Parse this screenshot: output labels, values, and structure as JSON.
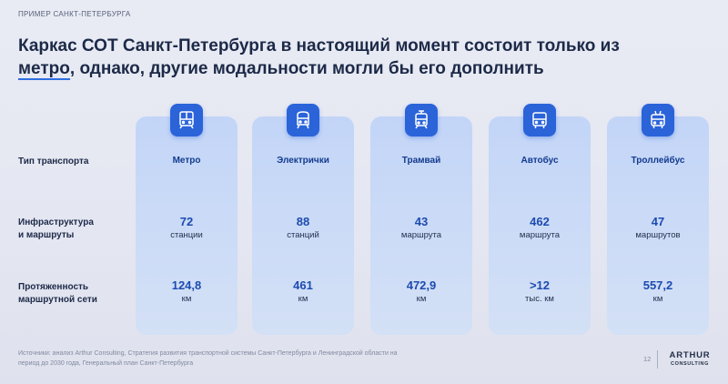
{
  "eyebrow": "ПРИМЕР САНКТ-ПЕТЕРБУРГА",
  "title": {
    "line1": "Каркас СОТ Санкт-Петербурга в настоящий момент состоит только из",
    "line2_underlined": "метро",
    "line2_rest": ", однако, другие модальности могли бы его дополнить"
  },
  "row_labels": {
    "transport_type": "Тип транспорта",
    "infrastructure": "Инфраструктура\nи маршруты",
    "length": "Протяженность\nмаршрутной сети"
  },
  "columns": [
    {
      "icon": "metro-icon",
      "name": "Метро",
      "infra_value": "72",
      "infra_unit": "станции",
      "length_value": "124,8",
      "length_unit": "км"
    },
    {
      "icon": "train-icon",
      "name": "Электрички",
      "infra_value": "88",
      "infra_unit": "станций",
      "length_value": "461",
      "length_unit": "км"
    },
    {
      "icon": "tram-icon",
      "name": "Трамвай",
      "infra_value": "43",
      "infra_unit": "маршрута",
      "length_value": "472,9",
      "length_unit": "км"
    },
    {
      "icon": "bus-icon",
      "name": "Автобус",
      "infra_value": "462",
      "infra_unit": "маршрута",
      "length_value": ">12",
      "length_unit": "тыс. км"
    },
    {
      "icon": "trolleybus-icon",
      "name": "Троллейбус",
      "infra_value": "47",
      "infra_unit": "маршрутов",
      "length_value": "557,2",
      "length_unit": "км"
    }
  ],
  "footer": {
    "sources": "Источники: анализ Arthur Consulting, Стратегия развития транспортной системы Санкт-Петербурга и Ленинградской области на период до 2030 года, Генеральный план Санкт-Петербурга",
    "page_number": "12"
  },
  "logo": {
    "line1": "ARTHUR",
    "line2": "CONSULTING"
  },
  "colors": {
    "accent": "#2b63d9",
    "column_fill": "#c7d8f7",
    "value_text": "#1d4bb0"
  }
}
